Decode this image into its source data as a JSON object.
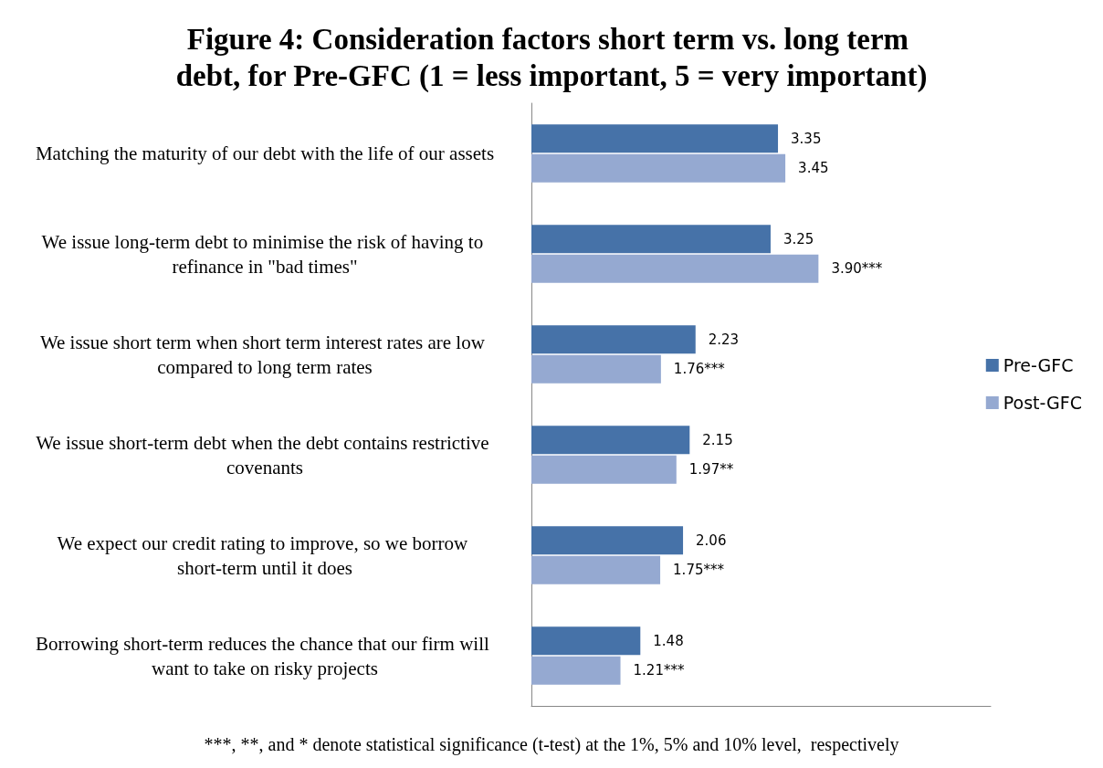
{
  "chart_data": {
    "type": "bar",
    "orientation": "horizontal",
    "title": "Figure 4: Consideration factors short term vs. long term debt, for Pre-GFC (1 = less important, 5 = very important)",
    "categories": [
      "Matching the maturity of our debt with the life of our assets",
      "We issue long-term debt to minimise the risk of having to refinance in \"bad times\"",
      "We issue short term when short term interest rates are low compared to long term rates",
      "We issue short-term debt when the debt contains restrictive covenants",
      "We expect our credit rating to improve, so we borrow short-term until it does",
      "Borrowing short-term reduces the chance that our firm will want to take on risky projects"
    ],
    "series": [
      {
        "name": "Pre-GFC",
        "color": "#4672a8",
        "values": [
          3.35,
          3.25,
          2.23,
          2.15,
          2.06,
          1.48
        ],
        "value_labels": [
          "3.35",
          "3.25",
          "2.23",
          "2.15",
          "2.06",
          "1.48"
        ]
      },
      {
        "name": "Post-GFC",
        "color": "#95a9d1",
        "values": [
          3.45,
          3.9,
          1.76,
          1.97,
          1.75,
          1.21
        ],
        "value_labels": [
          "3.45",
          "3.90***",
          "1.76***",
          "1.97**",
          "1.75***",
          "1.21***"
        ]
      }
    ],
    "legend": "right",
    "grid": false,
    "annotations": [
      "***, **, and * denote statistical significance (t-test) at the 1%, 5% and 10% level,  respectively"
    ]
  }
}
